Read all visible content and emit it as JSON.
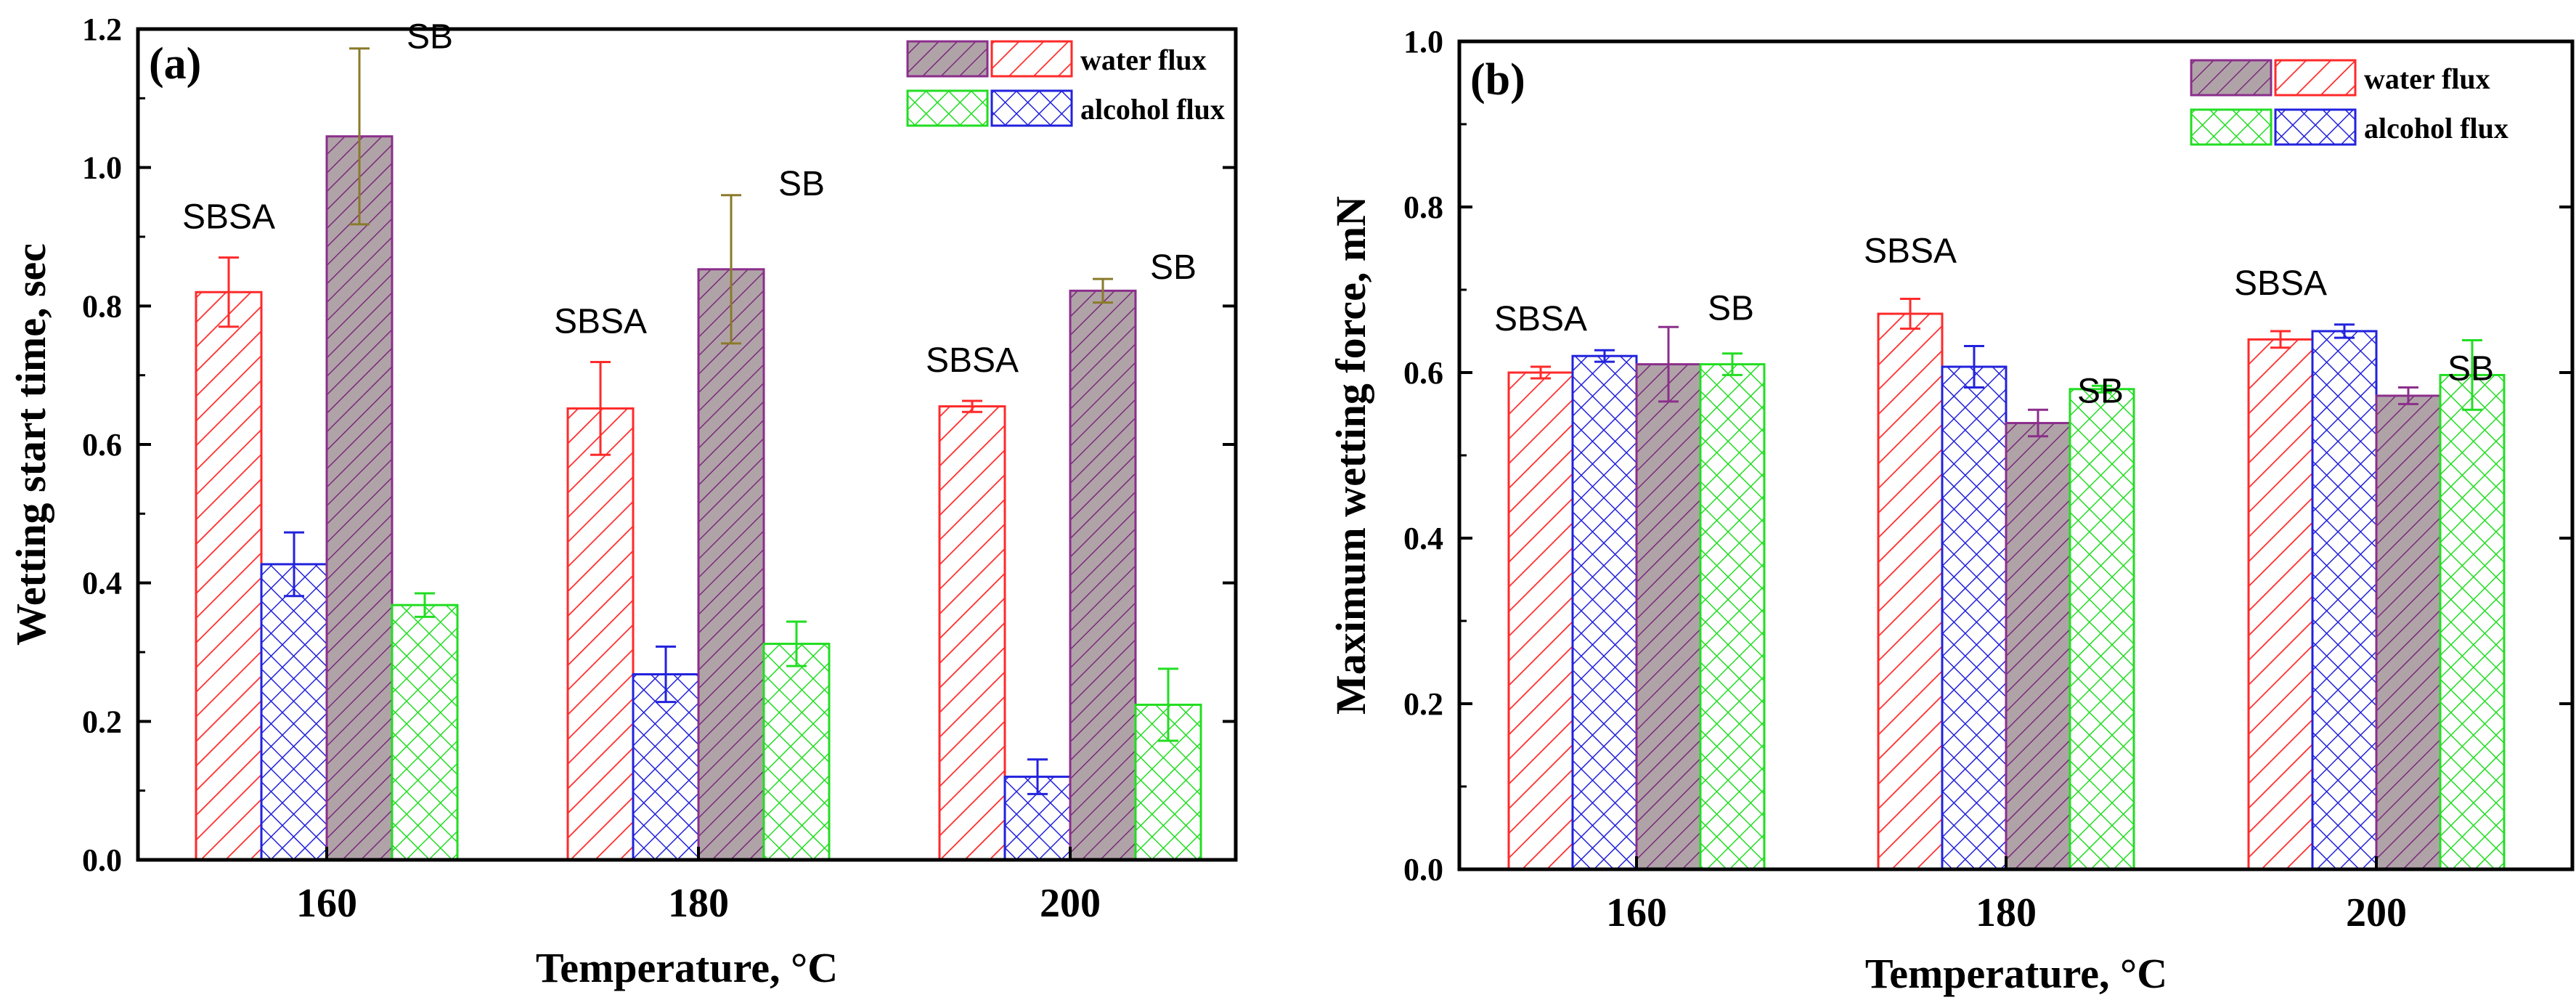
{
  "chart_data": [
    {
      "type": "bar",
      "panel_label": "(a)",
      "title": "",
      "xlabel": "Temperature, °C",
      "ylabel": "Wetting start time, sec",
      "ylim": [
        0,
        1.2
      ],
      "yticks": [
        "0.0",
        "0.2",
        "0.4",
        "0.6",
        "0.8",
        "1.0",
        "1.2"
      ],
      "categories": [
        "160",
        "180",
        "200"
      ],
      "series": [
        {
          "name": "SBSA water flux",
          "values": [
            0.82,
            0.652,
            0.655
          ],
          "errors": [
            0.05,
            0.067,
            0.008
          ],
          "color": "#ff2a2a",
          "pattern": "diag"
        },
        {
          "name": "SBSA alcohol flux",
          "values": [
            0.427,
            0.268,
            0.12
          ],
          "errors": [
            0.046,
            0.04,
            0.025
          ],
          "color": "#2222dd",
          "pattern": "cross"
        },
        {
          "name": "SB water flux",
          "values": [
            1.045,
            0.853,
            0.822
          ],
          "errors": [
            0.127,
            0.107,
            0.017
          ],
          "color": "#8b2e8b",
          "pattern": "diag-filled"
        },
        {
          "name": "SB alcohol flux",
          "values": [
            0.368,
            0.312,
            0.224
          ],
          "errors": [
            0.017,
            0.032,
            0.052
          ],
          "color": "#22dd22",
          "pattern": "cross"
        }
      ],
      "annotations": [
        {
          "text": "SBSA",
          "category": "160",
          "attach_series": 0
        },
        {
          "text": "SB",
          "category": "160",
          "attach_series": 2
        },
        {
          "text": "SBSA",
          "category": "180",
          "attach_series": 0
        },
        {
          "text": "SB",
          "category": "180",
          "attach_series": 2
        },
        {
          "text": "SBSA",
          "category": "200",
          "attach_series": 0
        },
        {
          "text": "SB",
          "category": "200",
          "attach_series": 2
        }
      ],
      "legend": {
        "placement": "top-right",
        "rows": [
          "water flux",
          "alcohol flux"
        ]
      }
    },
    {
      "type": "bar",
      "panel_label": "(b)",
      "title": "",
      "xlabel": "Temperature, °C",
      "ylabel": "Maximum wetting force, mN",
      "ylim": [
        0,
        1.0
      ],
      "yticks": [
        "0.0",
        "0.2",
        "0.4",
        "0.6",
        "0.8",
        "1.0"
      ],
      "categories": [
        "160",
        "180",
        "200"
      ],
      "series": [
        {
          "name": "SBSA water flux",
          "values": [
            0.6,
            0.671,
            0.64
          ],
          "errors": [
            0.007,
            0.018,
            0.01
          ],
          "color": "#ff2a2a",
          "pattern": "diag"
        },
        {
          "name": "SBSA alcohol flux",
          "values": [
            0.62,
            0.607,
            0.65
          ],
          "errors": [
            0.007,
            0.025,
            0.008
          ],
          "color": "#2222dd",
          "pattern": "cross"
        },
        {
          "name": "SB water flux",
          "values": [
            0.61,
            0.539,
            0.572
          ],
          "errors": [
            0.045,
            0.016,
            0.01
          ],
          "color": "#8b2e8b",
          "pattern": "diag-filled"
        },
        {
          "name": "SB alcohol flux",
          "values": [
            0.61,
            0.58,
            0.597
          ],
          "errors": [
            0.013,
            0.004,
            0.042
          ],
          "color": "#22dd22",
          "pattern": "cross"
        }
      ],
      "annotations": [
        {
          "text": "SBSA",
          "category": "160",
          "attach_series": 0
        },
        {
          "text": "SB",
          "category": "160",
          "attach_series": 2
        },
        {
          "text": "SBSA",
          "category": "180",
          "attach_series": 0
        },
        {
          "text": "SB",
          "category": "180",
          "attach_series": 2
        },
        {
          "text": "SBSA",
          "category": "200",
          "attach_series": 0
        },
        {
          "text": "SB",
          "category": "200",
          "attach_series": 2
        }
      ],
      "legend": {
        "placement": "top-right",
        "rows": [
          "water flux",
          "alcohol flux"
        ]
      }
    }
  ]
}
